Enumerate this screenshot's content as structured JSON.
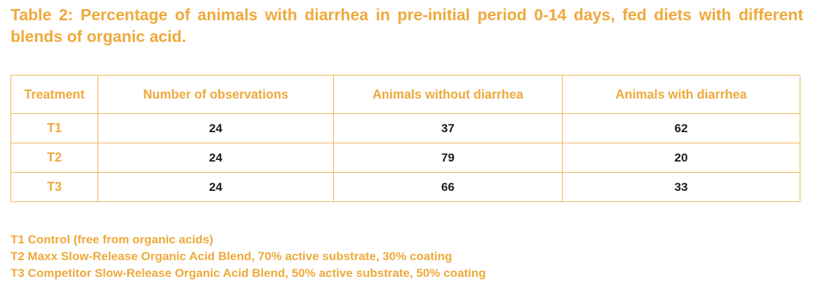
{
  "title": "Table 2: Percentage of animals with diarrhea in pre-initial period 0-14 days, fed diets with different blends of organic acid.",
  "table": {
    "headers": [
      "Treatment",
      "Number of observations",
      "Animals without diarrhea",
      "Animals with diarrhea"
    ],
    "rows": [
      {
        "treatment": "T1",
        "observations": "24",
        "without": "37",
        "with": "62"
      },
      {
        "treatment": "T2",
        "observations": "24",
        "without": "79",
        "with": "20"
      },
      {
        "treatment": "T3",
        "observations": "24",
        "without": "66",
        "with": "33"
      }
    ]
  },
  "notes": [
    "T1 Control (free from organic acids)",
    "T2 Maxx Slow-Release Organic Acid Blend, 70% active substrate, 30% coating",
    "T3 Competitor Slow-Release Organic Acid Blend, 50% active substrate, 50% coating"
  ],
  "colors": {
    "accent": "#efa93b",
    "border": "#efb554",
    "text": "#1c1c1c"
  }
}
